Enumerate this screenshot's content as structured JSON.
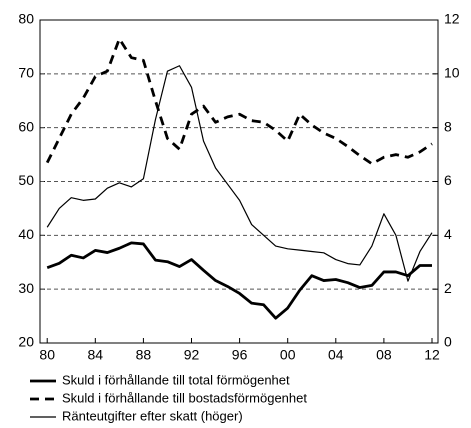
{
  "chart_data": {
    "type": "line",
    "x": [
      1980,
      1981,
      1982,
      1983,
      1984,
      1985,
      1986,
      1987,
      1988,
      1989,
      1990,
      1991,
      1992,
      1993,
      1994,
      1995,
      1996,
      1997,
      1998,
      1999,
      2000,
      2001,
      2002,
      2003,
      2004,
      2005,
      2006,
      2007,
      2008,
      2009,
      2010,
      2011,
      2012
    ],
    "xlim": [
      1979.4,
      2012.5
    ],
    "xticks": [
      {
        "value": 1980,
        "label": "80"
      },
      {
        "value": 1984,
        "label": "84"
      },
      {
        "value": 1988,
        "label": "88"
      },
      {
        "value": 1992,
        "label": "92"
      },
      {
        "value": 1996,
        "label": "96"
      },
      {
        "value": 2000,
        "label": "00"
      },
      {
        "value": 2004,
        "label": "04"
      },
      {
        "value": 2008,
        "label": "08"
      },
      {
        "value": 2012,
        "label": "12"
      }
    ],
    "ylim": [
      20,
      80
    ],
    "yticks": [
      20,
      30,
      40,
      50,
      60,
      70,
      80
    ],
    "y2lim": [
      0,
      12
    ],
    "y2ticks": [
      0,
      2,
      4,
      6,
      8,
      10,
      12
    ],
    "grid": true,
    "series": [
      {
        "name": "Skuld i förhållande till total förmögenhet",
        "color": "#000000",
        "line_width": 2.8,
        "line_style": "solid",
        "values": [
          34,
          34.8,
          36.3,
          35.8,
          37.2,
          36.8,
          37.6,
          38.6,
          38.4,
          35.4,
          35.1,
          34.2,
          35.5,
          33.5,
          31.6,
          30.5,
          29.2,
          27.4,
          27.1,
          24.6,
          26.5,
          29.8,
          32.5,
          31.6,
          31.8,
          31.2,
          30.3,
          30.7,
          33.2,
          33.2,
          32.5,
          34.4,
          34.4
        ]
      },
      {
        "name": "Skuld i förhållande till bostadsförmögenhet",
        "color": "#000000",
        "line_width": 2.8,
        "line_style": "dashed",
        "values": [
          53.5,
          58,
          62.5,
          65.5,
          69.5,
          70.5,
          76.5,
          73,
          72.5,
          65,
          58,
          56,
          62.5,
          64,
          61,
          62,
          62.5,
          61.3,
          61,
          59.5,
          57.5,
          62.5,
          60.5,
          59,
          58,
          56.5,
          54.8,
          53.3,
          54.5,
          55,
          54.5,
          55.5,
          57
        ]
      },
      {
        "name": "Ränteutgifter efter skatt (höger)",
        "color": "#000000",
        "line_width": 1.2,
        "line_style": "solid",
        "axis": "y2",
        "values": [
          4.3,
          5.0,
          5.4,
          5.3,
          5.35,
          5.75,
          5.95,
          5.8,
          6.1,
          8.3,
          10.1,
          10.3,
          9.5,
          7.5,
          6.5,
          5.9,
          5.3,
          4.4,
          4.0,
          3.6,
          3.5,
          3.45,
          3.4,
          3.35,
          3.1,
          2.95,
          2.9,
          3.6,
          4.8,
          4.0,
          2.3,
          3.4,
          4.1
        ]
      }
    ]
  }
}
